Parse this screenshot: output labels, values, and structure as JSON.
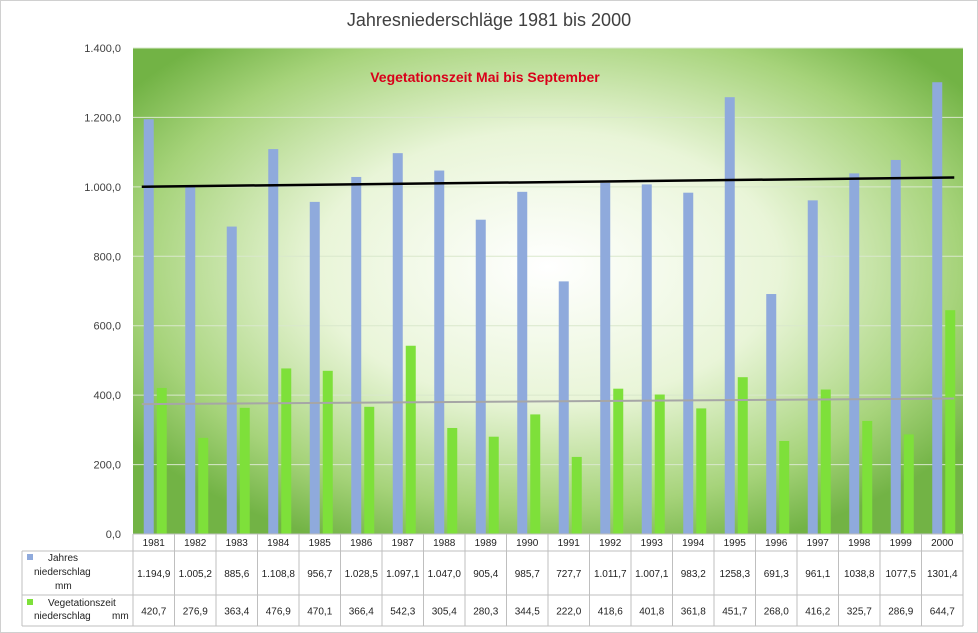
{
  "chart_data": {
    "type": "bar",
    "title": "Jahresniederschläge 1981 bis 2000",
    "annotation": "Vegetationszeit Mai bis September",
    "categories": [
      "1981",
      "1982",
      "1983",
      "1984",
      "1985",
      "1986",
      "1987",
      "1988",
      "1989",
      "1990",
      "1991",
      "1992",
      "1993",
      "1994",
      "1995",
      "1996",
      "1997",
      "1998",
      "1999",
      "2000"
    ],
    "ylim": [
      0,
      1400
    ],
    "yticks": [
      0,
      200,
      400,
      600,
      800,
      1000,
      1200,
      1400
    ],
    "ytick_labels": [
      "0,0",
      "200,0",
      "400,0",
      "600,0",
      "800,0",
      "1.000,0",
      "1.200,0",
      "1.400,0"
    ],
    "grid": true,
    "legend": "data-table",
    "series": [
      {
        "name_lines": [
          "Jahres",
          "niederschlag",
          "mm"
        ],
        "color": "#8faadc",
        "values": [
          1194.9,
          1005.2,
          885.6,
          1108.8,
          956.7,
          1028.5,
          1097.1,
          1047.0,
          905.4,
          985.7,
          727.7,
          1011.7,
          1007.1,
          983.2,
          1258.3,
          691.3,
          961.1,
          1038.8,
          1077.5,
          1301.4
        ],
        "labels": [
          "1.194,9",
          "1.005,2",
          "885,6",
          "1.108,8",
          "956,7",
          "1.028,5",
          "1.097,1",
          "1.047,0",
          "905,4",
          "985,7",
          "727,7",
          "1.011,7",
          "1.007,1",
          "983,2",
          "1258,3",
          "691,3",
          "961,1",
          "1038,8",
          "1077,5",
          "1301,4"
        ],
        "trend_color": "#000000"
      },
      {
        "name_lines": [
          "Vegetationszeit",
          "niederschlag",
          "mm"
        ],
        "color": "#7ee03a",
        "values": [
          420.7,
          276.9,
          363.4,
          476.9,
          470.1,
          366.4,
          542.3,
          305.4,
          280.3,
          344.5,
          222.0,
          418.6,
          401.8,
          361.8,
          451.7,
          268.0,
          416.2,
          325.7,
          286.9,
          644.7
        ],
        "labels": [
          "420,7",
          "276,9",
          "363,4",
          "476,9",
          "470,1",
          "366,4",
          "542,3",
          "305,4",
          "280,3",
          "344,5",
          "222,0",
          "418,6",
          "401,8",
          "361,8",
          "451,7",
          "268,0",
          "416,2",
          "325,7",
          "286,9",
          "644,7"
        ],
        "trend_color": "#a6a6a6"
      }
    ]
  }
}
